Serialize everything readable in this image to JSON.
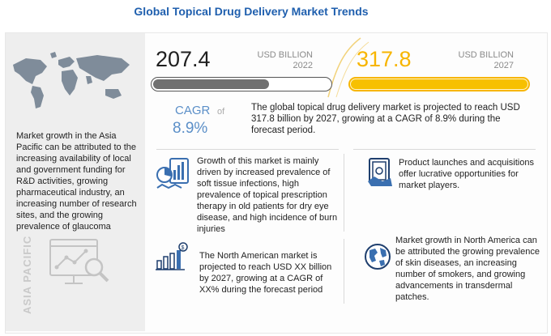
{
  "title": "Global Topical Drug Delivery Market Trends",
  "market_2022": {
    "value": "207.4",
    "unit": "USD BILLION",
    "year": "2022",
    "bar_fill": 0.65
  },
  "market_2027": {
    "value": "317.8",
    "unit": "USD BILLION",
    "year": "2027",
    "bar_fill": 1.0
  },
  "cagr": {
    "label": "CAGR",
    "of": "of",
    "value": "8.9%"
  },
  "summary": "The global topical drug delivery market is projected to reach USD 317.8 billion by 2027, growing at a CAGR of 8.9% during the forecast period.",
  "asia_pacific": {
    "text": "Market growth in the Asia Pacific can be attributed to the increasing availability of local and government funding for R&D activities, growing pharmaceutical industry, an increasing number of research sites, and the growing prevalence of glaucoma",
    "region_label": "ASIA PACIFIC"
  },
  "drivers": "Growth of this market is mainly driven by increased prevalence of soft tissue infections, high prevalence of topical prescription therapy in old patients for dry eye disease, and high incidence of burn injuries",
  "opportunities": "Product launches and acquisitions offer lucrative opportunities for market players.",
  "north_america_market": "The North American market is projected to reach USD XX billion by 2027, growing at a CAGR of XX% during the forecast period",
  "north_america_growth": "Market growth in North America can be attributed the growing prevalence of skin diseases, an increasing number of smokers, and growing advancements in transdermal patches.",
  "colors": {
    "title": "#1f5fae",
    "accent_blue": "#5b8fc8",
    "gold": "#f7b500",
    "gray_bar": "#707070",
    "icon_blue": "#3a6fb0"
  },
  "icons": [
    "world-map-icon",
    "analytics-magnifier-icon",
    "medical-chart-icon",
    "money-stack-icon",
    "growth-chart-dollar-icon",
    "globe-icon"
  ]
}
